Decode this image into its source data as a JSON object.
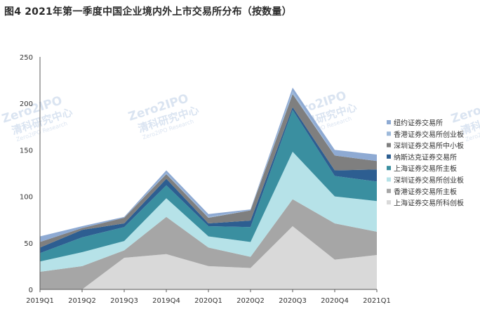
{
  "page": {
    "title": "图4 2021年第一季度中国企业境内外上市交易所分布（按数量）"
  },
  "chart_data": {
    "type": "area",
    "stacked": true,
    "categories": [
      "2019Q1",
      "2019Q2",
      "2019Q3",
      "2019Q4",
      "2020Q1",
      "2020Q2",
      "2020Q3",
      "2020Q4",
      "2021Q1"
    ],
    "ylim": [
      0,
      250
    ],
    "yticks": [
      0,
      50,
      100,
      150,
      200,
      250
    ],
    "grid": false,
    "legend_position": "right",
    "series": [
      {
        "name": "上海证券交易所科创板",
        "color": "#d9d9d9",
        "values": [
          0,
          0,
          34,
          38,
          25,
          23,
          68,
          32,
          37
        ]
      },
      {
        "name": "香港证券交易所主板",
        "color": "#a6a6a6",
        "values": [
          19,
          25,
          8,
          40,
          20,
          12,
          29,
          39,
          25
        ]
      },
      {
        "name": "深圳证券交易所创业板",
        "color": "#b6e2e8",
        "values": [
          11,
          15,
          10,
          20,
          12,
          16,
          51,
          29,
          33
        ]
      },
      {
        "name": "上海证券交易所主板",
        "color": "#3a8fa0",
        "values": [
          9,
          16,
          15,
          14,
          11,
          16,
          45,
          22,
          21
        ]
      },
      {
        "name": "纳斯达克证券交易所",
        "color": "#2d5e91",
        "values": [
          6,
          8,
          4,
          7,
          3,
          7,
          3,
          6,
          13
        ]
      },
      {
        "name": "深圳证券交易所中小板",
        "color": "#7f7f7f",
        "values": [
          6,
          2,
          6,
          5,
          6,
          11,
          14,
          16,
          9
        ]
      },
      {
        "name": "香港证券交易所创业板",
        "color": "#9db9da",
        "values": [
          0,
          0,
          0,
          1,
          1,
          0,
          3,
          0,
          0
        ]
      },
      {
        "name": "纽约证券交易所",
        "color": "#8eaad3",
        "values": [
          6,
          2,
          1,
          3,
          3,
          1,
          4,
          6,
          7
        ]
      }
    ],
    "watermark": {
      "brand": "Zero2IPO",
      "cn": "清科研究中心",
      "en": "Zero2IPO Research"
    }
  }
}
